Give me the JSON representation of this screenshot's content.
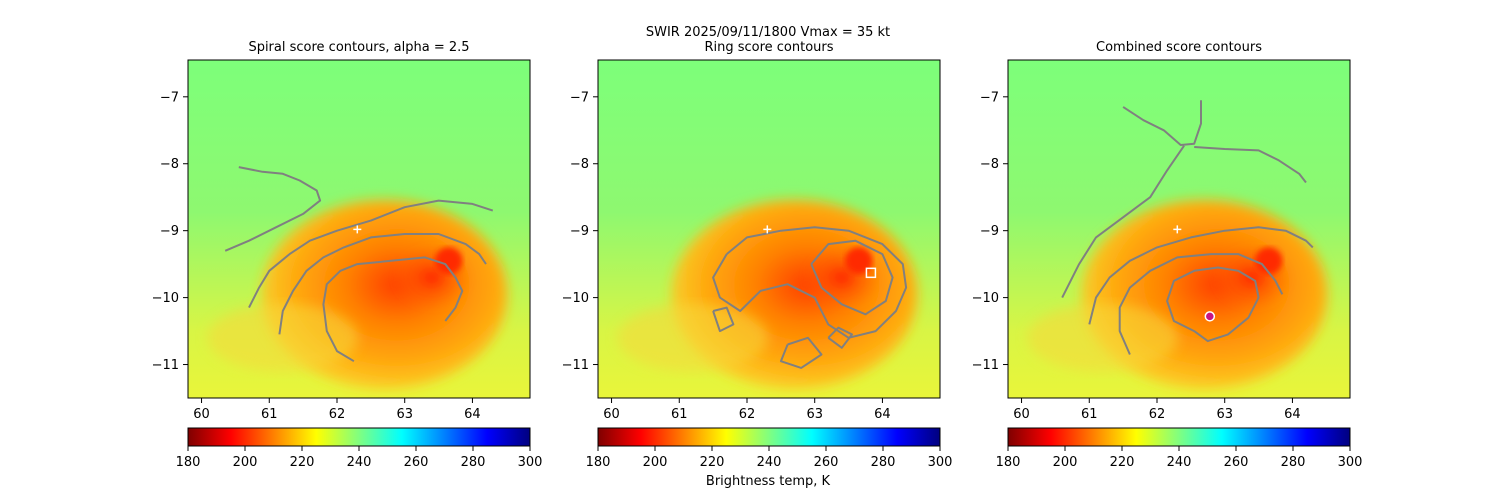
{
  "figure": {
    "suptitle_line1": "SWIR  2025/09/11/1800    Vmax = 35 kt"
  },
  "colorbar": {
    "label": "Brightness temp, K",
    "range": [
      180,
      300
    ],
    "ticks": [
      "180",
      "200",
      "220",
      "240",
      "260",
      "280",
      "300"
    ],
    "colormap": [
      "#7f0000",
      "#ff0000",
      "#ff8000",
      "#ffff00",
      "#80ff80",
      "#00ffff",
      "#0080ff",
      "#0000ff",
      "#00007f"
    ]
  },
  "chart_data": [
    {
      "type": "heatmap",
      "title": "Spiral score contours, alpha =  2.5",
      "xlim": [
        59.8,
        64.85
      ],
      "ylim": [
        -11.5,
        -6.45
      ],
      "x_ticks": [
        "60",
        "61",
        "62",
        "63",
        "64"
      ],
      "y_ticks": [
        "−7",
        "−8",
        "−9",
        "−10",
        "−11"
      ],
      "contour_color": "#808080",
      "contours": [
        [
          [
            60.55,
            -8.05
          ],
          [
            60.9,
            -8.12
          ],
          [
            61.2,
            -8.15
          ],
          [
            61.45,
            -8.25
          ],
          [
            61.7,
            -8.4
          ],
          [
            61.75,
            -8.55
          ],
          [
            61.5,
            -8.75
          ],
          [
            61.1,
            -8.95
          ],
          [
            60.7,
            -9.15
          ],
          [
            60.35,
            -9.3
          ]
        ],
        [
          [
            60.7,
            -10.15
          ],
          [
            60.85,
            -9.85
          ],
          [
            61.0,
            -9.6
          ],
          [
            61.3,
            -9.35
          ],
          [
            61.6,
            -9.15
          ],
          [
            62.0,
            -9.0
          ],
          [
            62.5,
            -8.85
          ],
          [
            63.0,
            -8.65
          ],
          [
            63.5,
            -8.55
          ],
          [
            64.0,
            -8.6
          ],
          [
            64.3,
            -8.7
          ]
        ],
        [
          [
            61.15,
            -10.55
          ],
          [
            61.2,
            -10.2
          ],
          [
            61.35,
            -9.9
          ],
          [
            61.55,
            -9.6
          ],
          [
            61.8,
            -9.4
          ],
          [
            62.1,
            -9.25
          ],
          [
            62.5,
            -9.1
          ],
          [
            63.0,
            -9.05
          ],
          [
            63.5,
            -9.05
          ],
          [
            63.9,
            -9.2
          ],
          [
            64.1,
            -9.35
          ],
          [
            64.2,
            -9.5
          ]
        ],
        [
          [
            62.25,
            -10.95
          ],
          [
            62.0,
            -10.8
          ],
          [
            61.85,
            -10.5
          ],
          [
            61.8,
            -10.1
          ],
          [
            61.85,
            -9.8
          ],
          [
            62.05,
            -9.6
          ],
          [
            62.3,
            -9.5
          ],
          [
            62.8,
            -9.45
          ],
          [
            63.3,
            -9.4
          ],
          [
            63.6,
            -9.5
          ],
          [
            63.75,
            -9.7
          ],
          [
            63.85,
            -9.9
          ],
          [
            63.75,
            -10.15
          ],
          [
            63.6,
            -10.35
          ]
        ]
      ],
      "markers": [
        {
          "type": "plus",
          "x": 62.3,
          "y": -8.98,
          "color": "#ffffff"
        }
      ]
    },
    {
      "type": "heatmap",
      "title": "Ring score contours",
      "xlim": [
        59.8,
        64.85
      ],
      "ylim": [
        -11.5,
        -6.45
      ],
      "x_ticks": [
        "60",
        "61",
        "62",
        "63",
        "64"
      ],
      "y_ticks": [
        "−7",
        "−8",
        "−9",
        "−10",
        "−11"
      ],
      "contour_color": "#808080",
      "contours": [
        [
          [
            61.7,
            -9.35
          ],
          [
            62.0,
            -9.1
          ],
          [
            62.5,
            -9.0
          ],
          [
            63.0,
            -8.95
          ],
          [
            63.5,
            -9.0
          ],
          [
            64.0,
            -9.2
          ],
          [
            64.3,
            -9.5
          ],
          [
            64.35,
            -9.85
          ],
          [
            64.2,
            -10.2
          ],
          [
            63.9,
            -10.5
          ],
          [
            63.5,
            -10.6
          ],
          [
            63.2,
            -10.4
          ],
          [
            63.0,
            -10.0
          ],
          [
            62.6,
            -9.8
          ],
          [
            62.2,
            -9.9
          ],
          [
            61.9,
            -10.2
          ],
          [
            61.6,
            -10.0
          ],
          [
            61.5,
            -9.7
          ],
          [
            61.7,
            -9.35
          ]
        ],
        [
          [
            62.95,
            -9.5
          ],
          [
            63.2,
            -9.2
          ],
          [
            63.6,
            -9.15
          ],
          [
            64.0,
            -9.35
          ],
          [
            64.15,
            -9.7
          ],
          [
            64.05,
            -10.05
          ],
          [
            63.75,
            -10.25
          ],
          [
            63.4,
            -10.1
          ],
          [
            63.1,
            -9.85
          ],
          [
            62.95,
            -9.5
          ]
        ],
        [
          [
            62.6,
            -10.7
          ],
          [
            62.9,
            -10.6
          ],
          [
            63.1,
            -10.85
          ],
          [
            62.8,
            -11.05
          ],
          [
            62.5,
            -10.95
          ],
          [
            62.6,
            -10.7
          ]
        ],
        [
          [
            61.5,
            -10.2
          ],
          [
            61.6,
            -10.5
          ],
          [
            61.8,
            -10.4
          ],
          [
            61.7,
            -10.15
          ],
          [
            61.5,
            -10.2
          ]
        ],
        [
          [
            63.2,
            -10.6
          ],
          [
            63.4,
            -10.75
          ],
          [
            63.55,
            -10.55
          ],
          [
            63.35,
            -10.45
          ],
          [
            63.2,
            -10.6
          ]
        ]
      ],
      "markers": [
        {
          "type": "square",
          "x": 63.83,
          "y": -9.63,
          "color": "#ffffff"
        },
        {
          "type": "plus",
          "x": 62.3,
          "y": -8.98,
          "color": "#ffffff"
        }
      ]
    },
    {
      "type": "heatmap",
      "title": "Combined score contours",
      "xlim": [
        59.8,
        64.85
      ],
      "ylim": [
        -11.5,
        -6.45
      ],
      "x_ticks": [
        "60",
        "61",
        "62",
        "63",
        "64"
      ],
      "y_ticks": [
        "−7",
        "−8",
        "−9",
        "−10",
        "−11"
      ],
      "contour_color": "#808080",
      "contours": [
        [
          [
            61.5,
            -7.15
          ],
          [
            61.8,
            -7.35
          ],
          [
            62.1,
            -7.5
          ],
          [
            62.35,
            -7.72
          ],
          [
            62.55,
            -7.7
          ],
          [
            62.65,
            -7.4
          ],
          [
            62.65,
            -7.05
          ]
        ],
        [
          [
            62.55,
            -7.75
          ],
          [
            63.0,
            -7.78
          ],
          [
            63.5,
            -7.8
          ],
          [
            63.8,
            -7.95
          ],
          [
            64.1,
            -8.15
          ],
          [
            64.2,
            -8.28
          ]
        ],
        [
          [
            62.4,
            -7.73
          ],
          [
            62.15,
            -8.1
          ],
          [
            61.9,
            -8.5
          ],
          [
            61.5,
            -8.8
          ],
          [
            61.1,
            -9.1
          ],
          [
            60.85,
            -9.5
          ],
          [
            60.6,
            -10.0
          ]
        ],
        [
          [
            61.0,
            -10.4
          ],
          [
            61.1,
            -10.0
          ],
          [
            61.3,
            -9.7
          ],
          [
            61.6,
            -9.45
          ],
          [
            62.0,
            -9.25
          ],
          [
            62.5,
            -9.1
          ],
          [
            63.0,
            -9.0
          ],
          [
            63.5,
            -8.95
          ],
          [
            63.9,
            -9.0
          ],
          [
            64.2,
            -9.15
          ],
          [
            64.3,
            -9.25
          ]
        ],
        [
          [
            61.6,
            -10.85
          ],
          [
            61.45,
            -10.5
          ],
          [
            61.45,
            -10.15
          ],
          [
            61.6,
            -9.85
          ],
          [
            61.9,
            -9.6
          ],
          [
            62.3,
            -9.4
          ],
          [
            62.8,
            -9.35
          ],
          [
            63.2,
            -9.35
          ],
          [
            63.55,
            -9.5
          ],
          [
            63.75,
            -9.75
          ],
          [
            63.85,
            -9.95
          ]
        ],
        [
          [
            62.55,
            -10.5
          ],
          [
            62.25,
            -10.35
          ],
          [
            62.15,
            -10.05
          ],
          [
            62.25,
            -9.75
          ],
          [
            62.55,
            -9.6
          ],
          [
            62.9,
            -9.55
          ],
          [
            63.2,
            -9.6
          ],
          [
            63.45,
            -9.75
          ],
          [
            63.5,
            -10.0
          ],
          [
            63.35,
            -10.3
          ],
          [
            63.05,
            -10.55
          ],
          [
            62.75,
            -10.65
          ],
          [
            62.55,
            -10.5
          ]
        ]
      ],
      "markers": [
        {
          "type": "plus",
          "x": 62.3,
          "y": -8.98,
          "color": "#ffffff"
        },
        {
          "type": "ring",
          "x": 62.78,
          "y": -10.28,
          "color": "#c71585"
        }
      ]
    }
  ]
}
